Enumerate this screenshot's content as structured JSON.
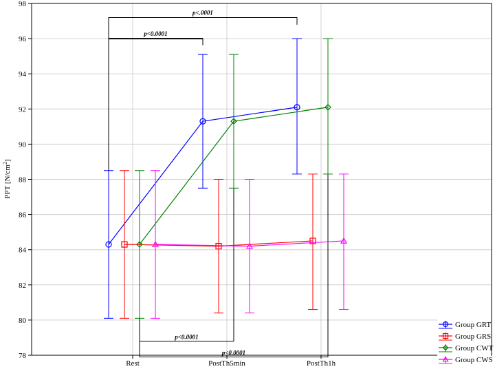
{
  "chart_data": {
    "type": "line",
    "title": "",
    "xlabel": "",
    "ylabel": "PPT [N/cm",
    "ylabel_sup": "2",
    "ylabel_suffix": "]",
    "ylim": [
      78,
      98
    ],
    "yticks": [
      "78",
      "80",
      "82",
      "84",
      "86",
      "88",
      "90",
      "92",
      "94",
      "96",
      "98"
    ],
    "categories": [
      "Rest",
      "PostTh5min",
      "PostTh1h"
    ],
    "grid": true,
    "legend_position": "bottom-right",
    "series": [
      {
        "name": "Group GRT",
        "color": "#0000ff",
        "marker": "circle",
        "values": [
          84.3,
          91.3,
          92.1
        ],
        "err_low": [
          80.1,
          87.5,
          88.3
        ],
        "err_high": [
          88.5,
          95.1,
          96.0
        ]
      },
      {
        "name": "Group GRS",
        "color": "#ff0000",
        "marker": "square",
        "values": [
          84.3,
          84.2,
          84.5
        ],
        "err_low": [
          80.1,
          80.4,
          80.6
        ],
        "err_high": [
          88.5,
          88.0,
          88.3
        ]
      },
      {
        "name": "Group CWT",
        "color": "#008000",
        "marker": "diamond",
        "values": [
          84.3,
          91.3,
          92.1
        ],
        "err_low": [
          80.1,
          87.5,
          88.3
        ],
        "err_high": [
          88.5,
          95.1,
          96.0
        ]
      },
      {
        "name": "Group CWS",
        "color": "#ff00ff",
        "marker": "triangle",
        "values": [
          84.3,
          84.2,
          84.5
        ],
        "err_low": [
          80.1,
          80.4,
          80.6
        ],
        "err_high": [
          88.5,
          88.0,
          88.3
        ]
      }
    ],
    "annotations": [
      {
        "text": "p<.0001",
        "from": "Rest",
        "to": "PostTh1h",
        "series": "Group GRT",
        "side": "top"
      },
      {
        "text": "p<0.0001",
        "from": "Rest",
        "to": "PostTh5min",
        "series": "Group GRT",
        "side": "top"
      },
      {
        "text": "p<0.0001",
        "from": "Rest",
        "to": "PostTh5min",
        "series": "Group CWT",
        "side": "bottom"
      },
      {
        "text": "p<0.0001",
        "from": "Rest",
        "to": "PostTh1h",
        "series": "Group CWT",
        "side": "bottom"
      }
    ]
  }
}
